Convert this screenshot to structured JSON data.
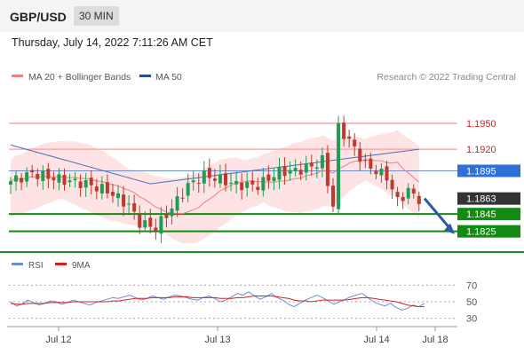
{
  "header": {
    "symbol": "GBP/USD",
    "timeframe": "30 MIN"
  },
  "timestamp": "Thursday, July 14, 2022 7:11:26 AM CET",
  "legend": {
    "ma20": "MA 20 + Bollinger Bands",
    "ma50": "MA 50"
  },
  "credit": "Research © 2022 Trading Central",
  "colors": {
    "bull": "#1f9d55",
    "bear": "#c0392b",
    "ma20": "#f08080",
    "ma50": "#4a6fb5",
    "band": "#fde3e3",
    "support": "#138a13",
    "arrow": "#2a5aa3",
    "rsi": "#6a8fd8",
    "rsi_ma": "#d42020"
  },
  "chart_data": [
    {
      "type": "candlestick",
      "ylim": [
        1.18,
        1.199
      ],
      "x_tick_labels": [
        "Jul 12",
        "Jul 13",
        "Jul 14",
        "Jul 18"
      ],
      "levels": [
        {
          "value": 1.195,
          "label": "1.1950",
          "kind": "resistance"
        },
        {
          "value": 1.192,
          "label": "1.1920",
          "kind": "resistance"
        },
        {
          "value": 1.1895,
          "label": "1.1895",
          "kind": "ma50"
        },
        {
          "value": 1.1863,
          "label": "1.1863",
          "kind": "last"
        },
        {
          "value": 1.1845,
          "label": "1.1845",
          "kind": "support"
        },
        {
          "value": 1.1825,
          "label": "1.1825",
          "kind": "support"
        }
      ],
      "forecast_target": 1.1825
    },
    {
      "type": "line",
      "legend": [
        "RSI",
        "9MA"
      ],
      "ylim": [
        20,
        80
      ],
      "y_ticks": [
        70,
        50,
        30
      ],
      "series": [
        {
          "name": "RSI",
          "values": [
            50,
            45,
            47,
            52,
            49,
            46,
            48,
            51,
            50,
            47,
            49,
            52,
            50,
            48,
            46,
            49,
            51,
            53,
            55,
            54,
            56,
            58,
            55,
            52,
            54,
            57,
            55,
            53,
            56,
            58,
            57,
            55,
            53,
            52,
            55,
            57,
            54,
            50,
            52,
            56,
            60,
            58,
            62,
            57,
            53,
            56,
            60,
            55,
            52,
            47,
            44,
            48,
            52,
            55,
            58,
            55,
            51,
            47,
            50,
            53,
            56,
            58,
            60,
            55,
            50,
            47,
            45,
            48,
            43,
            40,
            42,
            46,
            44,
            48
          ]
        },
        {
          "name": "9MA",
          "values": [
            48,
            47,
            47,
            48,
            48,
            48,
            48,
            49,
            49,
            49,
            49,
            50,
            50,
            50,
            50,
            50,
            50,
            50,
            51,
            51,
            52,
            53,
            54,
            54,
            54,
            55,
            55,
            55,
            55,
            56,
            56,
            56,
            55,
            55,
            55,
            55,
            55,
            54,
            54,
            54,
            55,
            55,
            56,
            57,
            57,
            57,
            57,
            56,
            55,
            54,
            52,
            51,
            51,
            50,
            51,
            52,
            52,
            52,
            52,
            52,
            53,
            54,
            55,
            55,
            54,
            53,
            52,
            51,
            50,
            48,
            46,
            45,
            44,
            44
          ]
        }
      ]
    }
  ]
}
